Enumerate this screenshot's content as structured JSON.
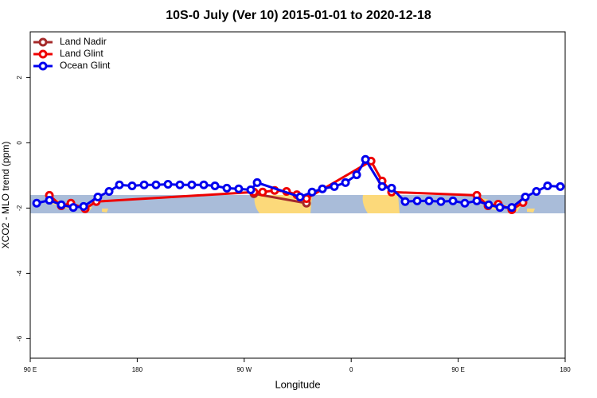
{
  "chart_data": {
    "type": "line",
    "title": "10S-0 July (Ver 10)   2015-01-01 to 2020-12-18",
    "x_label": "Longitude",
    "y_label": "XCO2 - MLO trend (ppm)",
    "xlim": [
      90,
      540
    ],
    "xticks": [
      {
        "value": 90,
        "label": "90 E"
      },
      180,
      {
        "value": 270,
        "label": "90 W"
      },
      {
        "value": 360,
        "label": "0"
      },
      {
        "value": 450,
        "label": "90 E"
      },
      {
        "value": 540,
        "label": "180"
      }
    ],
    "ylim": [
      -6.6,
      3.4
    ],
    "yticks": [
      2,
      0,
      -2,
      -4,
      -6
    ],
    "legend": "top-left",
    "series": [
      {
        "name": "Land Nadir",
        "color": "#a52a2a",
        "x": [
          278.2,
          322.4
        ],
        "values": [
          -1.56,
          -1.85
        ]
      },
      {
        "name": "Land Glint",
        "color": "#ee0000",
        "x": [
          106.1,
          116.1,
          124.2,
          136.2,
          145.6,
          278.2,
          285.5,
          295.6,
          305.6,
          314.3,
          322.4,
          376.7,
          386,
          394,
          465.7,
          475.1,
          483.7,
          495.1,
          504.5
        ],
        "values": [
          -1.61,
          -1.93,
          -1.85,
          -2.02,
          -1.8,
          -1.51,
          -1.51,
          -1.46,
          -1.49,
          -1.59,
          -1.71,
          -0.56,
          -1.17,
          -1.51,
          -1.61,
          -1.93,
          -1.88,
          -2.05,
          -1.83
        ]
      },
      {
        "name": "Ocean Glint",
        "color": "#0000ee",
        "x": [
          95.4,
          106.1,
          116.1,
          126.2,
          134.9,
          146.9,
          156.3,
          165,
          175.7,
          185.8,
          195.8,
          205.9,
          215.9,
          225.9,
          236,
          245.4,
          255.4,
          265.4,
          275.5,
          280.9,
          317,
          327.1,
          335.8,
          345.8,
          355.2,
          364.6,
          372,
          386,
          394,
          405.4,
          415.5,
          425.5,
          435.5,
          445.6,
          455.6,
          465.7,
          475.7,
          485.1,
          495.1,
          506.5,
          515.8,
          525.2,
          535.9
        ],
        "values": [
          -1.85,
          -1.76,
          -1.9,
          -1.98,
          -1.95,
          -1.66,
          -1.49,
          -1.29,
          -1.32,
          -1.29,
          -1.29,
          -1.27,
          -1.29,
          -1.29,
          -1.29,
          -1.32,
          -1.39,
          -1.41,
          -1.44,
          -1.22,
          -1.66,
          -1.51,
          -1.41,
          -1.34,
          -1.22,
          -0.98,
          -0.51,
          -1.34,
          -1.39,
          -1.8,
          -1.78,
          -1.78,
          -1.8,
          -1.78,
          -1.85,
          -1.78,
          -1.9,
          -1.98,
          -1.98,
          -1.66,
          -1.49,
          -1.32,
          -1.34
        ]
      }
    ]
  }
}
